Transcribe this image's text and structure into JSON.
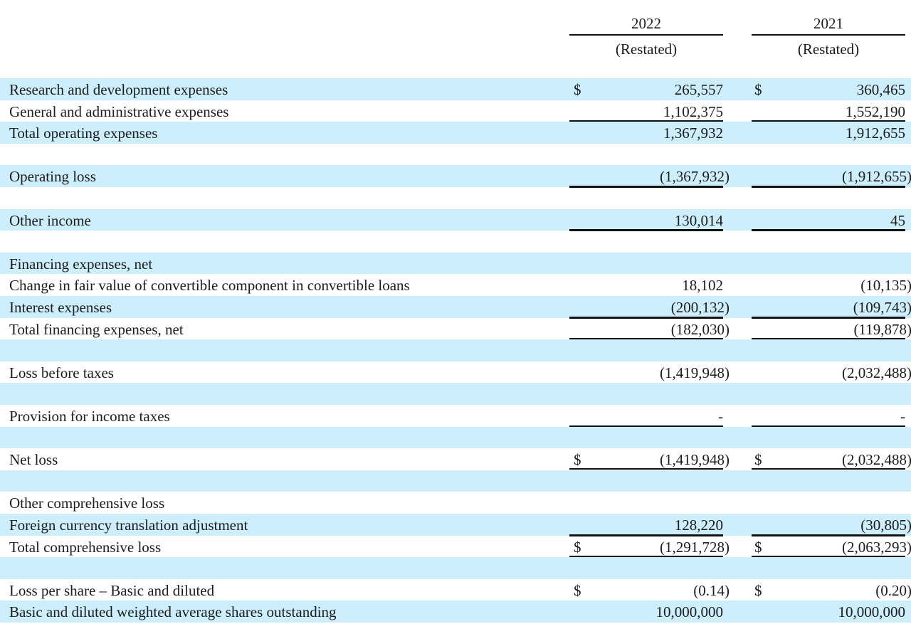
{
  "header": {
    "columns": [
      {
        "year": "2022",
        "note": "(Restated)"
      },
      {
        "year": "2021",
        "note": "(Restated)"
      }
    ]
  },
  "rows": [
    {
      "label": "Research and development expenses",
      "cur": "$",
      "v2022": "265,557",
      "v2021": "360,465"
    },
    {
      "label": "General and administrative expenses",
      "v2022": "1,102,375",
      "v2021": "1,552,190"
    },
    {
      "label": "Total operating expenses",
      "v2022": "1,367,932",
      "v2021": "1,912,655"
    },
    {
      "label": ""
    },
    {
      "label": "Operating loss",
      "v2022": "(1,367,932)",
      "v2021": "(1,912,655)"
    },
    {
      "label": ""
    },
    {
      "label": "Other income",
      "v2022": "130,014",
      "v2021": "45"
    },
    {
      "label": ""
    },
    {
      "label": "Financing expenses, net"
    },
    {
      "label": "Change in fair value of convertible component in convertible loans",
      "v2022": "18,102",
      "v2021": "(10,135)"
    },
    {
      "label": "Interest expenses",
      "v2022": "(200,132)",
      "v2021": "(109,743)"
    },
    {
      "label": "Total financing expenses, net",
      "v2022": "(182,030)",
      "v2021": "(119,878)"
    },
    {
      "label": ""
    },
    {
      "label": "Loss before taxes",
      "v2022": "(1,419,948)",
      "v2021": "(2,032,488)"
    },
    {
      "label": ""
    },
    {
      "label": "Provision for income taxes",
      "v2022": "-",
      "v2021": "-"
    },
    {
      "label": ""
    },
    {
      "label": "Net loss",
      "cur": "$",
      "v2022": "(1,419,948)",
      "v2021": "(2,032,488)"
    },
    {
      "label": ""
    },
    {
      "label": "Other comprehensive loss"
    },
    {
      "label": "Foreign currency translation adjustment",
      "v2022": "128,220",
      "v2021": "(30,805)"
    },
    {
      "label": "Total comprehensive loss",
      "cur": "$",
      "v2022": "(1,291,728)",
      "v2021": "(2,063,293)"
    },
    {
      "label": ""
    },
    {
      "label": "Loss per share – Basic and diluted",
      "cur": "$",
      "v2022": "(0.14)",
      "v2021": "(0.20)"
    },
    {
      "label": "Basic and diluted weighted average shares outstanding",
      "v2022": "10,000,000",
      "v2021": "10,000,000"
    }
  ],
  "colors": {
    "band": "#cdeefc"
  }
}
